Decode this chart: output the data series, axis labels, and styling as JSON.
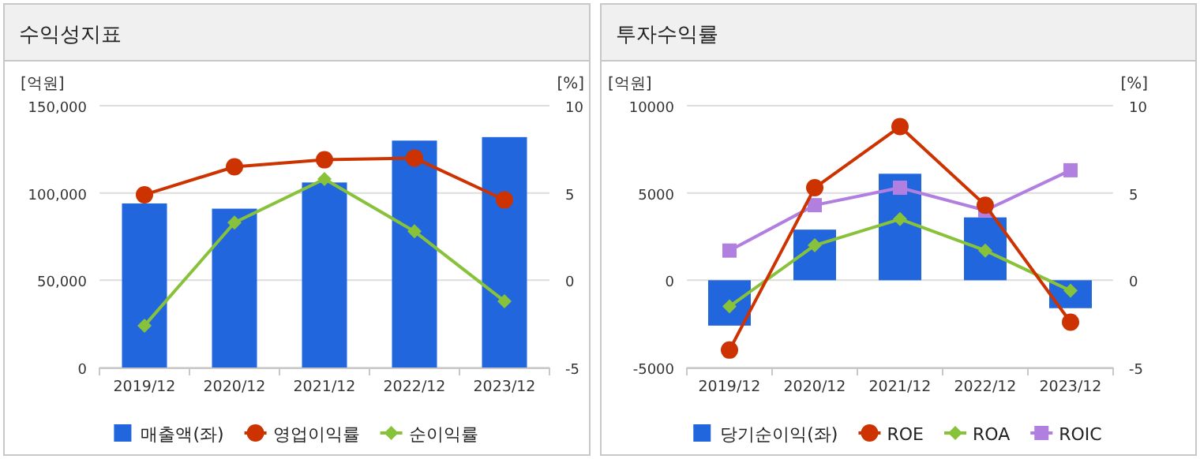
{
  "chart_data": [
    {
      "type": "bar",
      "title": "수익성지표",
      "ylabel": "[억원]",
      "y2label": "[%]",
      "categories": [
        "2019/12",
        "2020/12",
        "2021/12",
        "2022/12",
        "2023/12"
      ],
      "ylim": [
        0,
        150000
      ],
      "yticks": [
        0,
        {
          "value": 50000,
          "label": "50,000"
        },
        {
          "value": 100000,
          "label": "100,000"
        },
        {
          "value": 150000,
          "label": "150,000"
        }
      ],
      "y2lim": [
        -5,
        10
      ],
      "y2ticks": [
        -5,
        0,
        5,
        10
      ],
      "grid": "y",
      "legend": "bottom",
      "series": [
        {
          "name": "매출액(좌)",
          "color": "#2266dd",
          "values": [
            94000,
            91000,
            106000,
            130000,
            132000
          ]
        },
        {
          "name": "영업이익률",
          "type": "line",
          "axis": "y2",
          "marker": "circle",
          "color": "#cc3300",
          "values": [
            4.9,
            6.5,
            6.9,
            7.0,
            4.6
          ]
        },
        {
          "name": "순이익률",
          "type": "line",
          "axis": "y2",
          "marker": "diamond",
          "color": "#88c23a",
          "values": [
            -2.6,
            3.3,
            5.8,
            2.8,
            -1.2
          ]
        }
      ]
    },
    {
      "type": "bar",
      "title": "투자수익률",
      "ylabel": "[억원]",
      "y2label": "[%]",
      "categories": [
        "2019/12",
        "2020/12",
        "2021/12",
        "2022/12",
        "2023/12"
      ],
      "ylim": [
        -5000,
        10000
      ],
      "yticks": [
        -5000,
        0,
        5000,
        10000
      ],
      "y2lim": [
        -5,
        10
      ],
      "y2ticks": [
        -5,
        0,
        5,
        10
      ],
      "grid": "y",
      "legend": "bottom",
      "series": [
        {
          "name": "당기순이익(좌)",
          "color": "#2266dd",
          "values": [
            -2600,
            2900,
            6100,
            3600,
            -1600
          ]
        },
        {
          "name": "ROE",
          "type": "line",
          "axis": "y2",
          "marker": "circle",
          "color": "#cc3300",
          "values": [
            -4.0,
            5.3,
            8.8,
            4.3,
            -2.4
          ]
        },
        {
          "name": "ROA",
          "type": "line",
          "axis": "y2",
          "marker": "diamond",
          "color": "#88c23a",
          "values": [
            -1.5,
            2.0,
            3.5,
            1.7,
            -0.6
          ]
        },
        {
          "name": "ROIC",
          "type": "line",
          "axis": "y2",
          "marker": "square",
          "color": "#b07fe0",
          "values": [
            1.7,
            4.3,
            5.3,
            4.0,
            6.3
          ]
        }
      ]
    }
  ]
}
